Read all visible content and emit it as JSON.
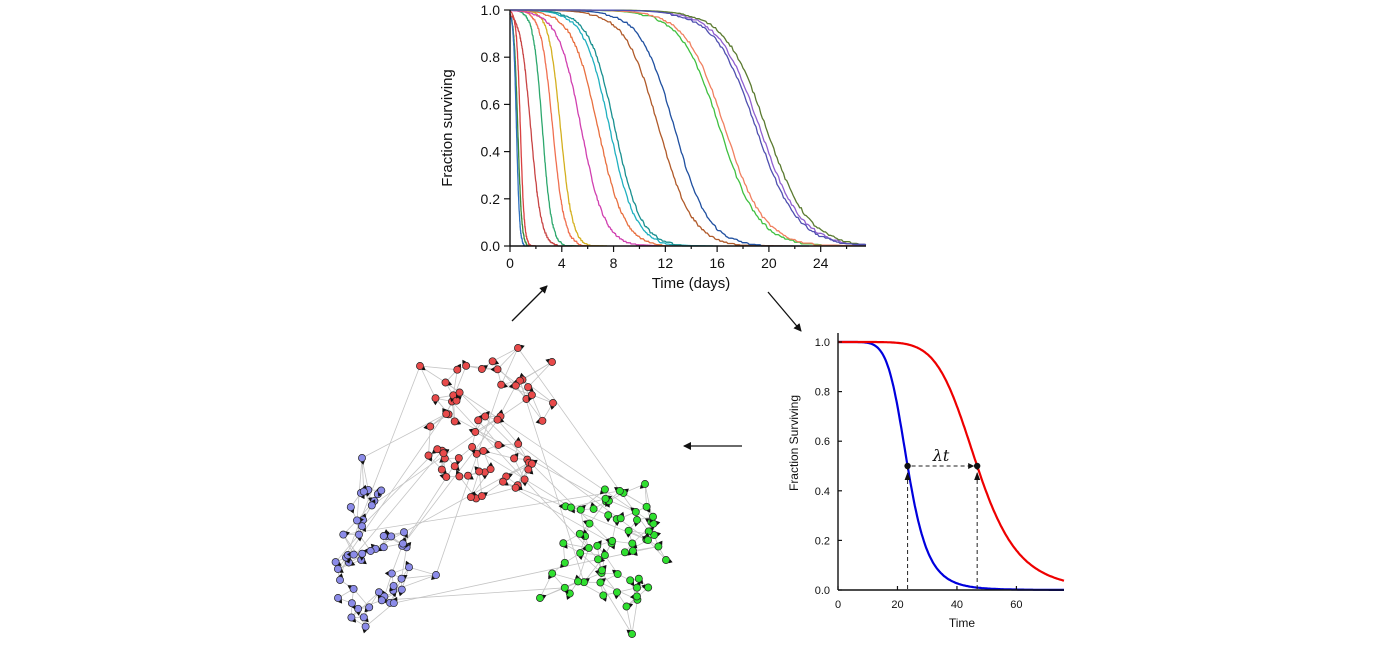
{
  "survival_chart": {
    "xlabel": "Time (days)",
    "ylabel": "Fraction surviving",
    "x_ticks": [
      "0",
      "4",
      "8",
      "12",
      "16",
      "20",
      "24"
    ],
    "y_ticks": [
      "0.0",
      "0.2",
      "0.4",
      "0.6",
      "0.8",
      "1.0"
    ]
  },
  "scaling_chart": {
    "xlabel": "Time",
    "ylabel": "Fraction Surviving",
    "annotation": "λt",
    "x_ticks": [
      "0",
      "20",
      "40",
      "60"
    ],
    "y_ticks": [
      "0.0",
      "0.2",
      "0.4",
      "0.6",
      "0.8",
      "1.0"
    ]
  },
  "network": {
    "clusters": [
      {
        "name": "red",
        "color": "#e84a4a"
      },
      {
        "name": "blue",
        "color": "#8b8be8"
      },
      {
        "name": "green",
        "color": "#2fe02f"
      }
    ]
  },
  "chart_data": [
    {
      "type": "line",
      "xlabel": "Time (days)",
      "ylabel": "Fraction surviving",
      "xlim": [
        0,
        27.5
      ],
      "ylim": [
        0,
        1
      ],
      "series": [
        {
          "color": "#3a8b3a",
          "median_days": 0.6,
          "spread": 0.15
        },
        {
          "color": "#d94040",
          "median_days": 0.8,
          "spread": 0.15
        },
        {
          "color": "#3070c0",
          "median_days": 0.5,
          "spread": 0.12
        },
        {
          "color": "#c84545",
          "median_days": 1.6,
          "spread": 0.4
        },
        {
          "color": "#2ea86e",
          "median_days": 2.5,
          "spread": 0.35
        },
        {
          "color": "#f07050",
          "median_days": 3.3,
          "spread": 0.45
        },
        {
          "color": "#d4b020",
          "median_days": 3.9,
          "spread": 0.45
        },
        {
          "color": "#d040b0",
          "median_days": 5.5,
          "spread": 0.9
        },
        {
          "color": "#e87040",
          "median_days": 6.8,
          "spread": 1.0
        },
        {
          "color": "#20b0c0",
          "median_days": 7.7,
          "spread": 1.0
        },
        {
          "color": "#1a9090",
          "median_days": 8.1,
          "spread": 1.0
        },
        {
          "color": "#b05a2a",
          "median_days": 11.5,
          "spread": 1.3
        },
        {
          "color": "#2050a0",
          "median_days": 12.7,
          "spread": 1.3
        },
        {
          "color": "#40c040",
          "median_days": 16.2,
          "spread": 1.5
        },
        {
          "color": "#f08060",
          "median_days": 16.6,
          "spread": 1.5
        },
        {
          "color": "#9060d0",
          "median_days": 19.3,
          "spread": 1.6
        },
        {
          "color": "#5a7a30",
          "median_days": 19.8,
          "spread": 1.6
        },
        {
          "color": "#5050b0",
          "median_days": 19.0,
          "spread": 1.6
        }
      ]
    },
    {
      "type": "line",
      "xlabel": "Time",
      "ylabel": "Fraction Surviving",
      "xlim": [
        0,
        76
      ],
      "ylim": [
        0,
        1
      ],
      "series": [
        {
          "color": "#0000dd",
          "midpoint": 23.4,
          "scale": 3.5
        },
        {
          "color": "#ee0000",
          "midpoint": 46.8,
          "scale": 7.0
        }
      ],
      "markers": [
        {
          "x": 23.4,
          "y": 0.5
        },
        {
          "x": 46.8,
          "y": 0.5
        }
      ]
    }
  ]
}
